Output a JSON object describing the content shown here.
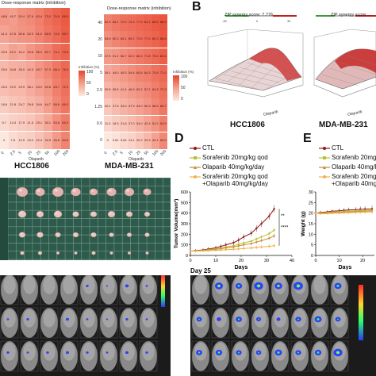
{
  "panel_letters": {
    "b": "B",
    "d": "D",
    "e": "E"
  },
  "heatmaps": {
    "left": {
      "title": "Dose-response matrix (inhibition)",
      "xlabel": "Olaparib",
      "cell_line": "HCC1806",
      "legend_title": "Inhibition (%)",
      "legend_ticks": [
        "100",
        "50",
        "0"
      ],
      "x_ticks": [
        "0",
        "2.5",
        "5",
        "10",
        "25",
        "50",
        "100",
        "200"
      ],
      "values": [
        [
          "48.8",
          "45.7",
          "53.4",
          "57.6",
          "63.4",
          "73.0",
          "79.5",
          "86.0"
        ],
        [
          "41.3",
          "47.5",
          "50.8",
          "52.9",
          "61.0",
          "68.9",
          "74.9",
          "83.7"
        ],
        [
          "33.5",
          "43.1",
          "40.2",
          "49.8",
          "56.2",
          "62.7",
          "74.1",
          "79.6"
        ],
        [
          "29.6",
          "34.8",
          "35.0",
          "40.3",
          "49.7",
          "57.3",
          "68.4",
          "76.9"
        ],
        [
          "25.3",
          "29.2",
          "29.9",
          "36.1",
          "43.2",
          "50.6",
          "63.7",
          "72.4"
        ],
        [
          "16.8",
          "21.8",
          "24.7",
          "29.8",
          "34.6",
          "44.7",
          "58.8",
          "69.2"
        ],
        [
          "9.7",
          "14.3",
          "17.9",
          "21.5",
          "29.1",
          "39.1",
          "53.8",
          "65.3"
        ],
        [
          "0",
          "7.8",
          "12.5",
          "15.2",
          "22.4",
          "32.5",
          "46.8",
          "60.6"
        ]
      ]
    },
    "right": {
      "title": "Dose-response matrix (inhibition)",
      "xlabel": "Olaparib",
      "cell_line": "MDA-MB-231",
      "legend_title": "Inhibition (%)",
      "legend_ticks": [
        "100",
        "50",
        "0"
      ],
      "y_ticks": [
        "40",
        "20",
        "10",
        "5",
        "2.5",
        "1.25",
        "0.6",
        "0"
      ],
      "x_ticks": [
        "0",
        "2.5",
        "5",
        "10",
        "25",
        "50",
        "100",
        "200"
      ],
      "values": [
        [
          "62.3",
          "68.1",
          "72.0",
          "74.3",
          "77.9",
          "81.2",
          "85.5",
          "88.9"
        ],
        [
          "54.8",
          "60.3",
          "65.1",
          "69.2",
          "72.5",
          "77.0",
          "80.3",
          "86.8"
        ],
        [
          "47.5",
          "51.2",
          "56.7",
          "62.0",
          "66.4",
          "71.8",
          "75.5",
          "82.6"
        ],
        [
          "39.1",
          "44.0",
          "49.3",
          "54.6",
          "60.5",
          "64.3",
          "70.8",
          "77.0"
        ],
        [
          "30.8",
          "36.5",
          "41.4",
          "46.9",
          "52.2",
          "57.1",
          "64.3",
          "72.3"
        ],
        [
          "20.1",
          "27.5",
          "33.0",
          "37.9",
          "44.0",
          "50.3",
          "58.5",
          "68.7"
        ],
        [
          "11.3",
          "18.3",
          "21.8",
          "27.0",
          "34.0",
          "42.4",
          "51.2",
          "63.9"
        ],
        [
          "0",
          "3.81",
          "9.64",
          "13.1",
          "20.2",
          "29.3",
          "43.1",
          "59.0"
        ]
      ]
    }
  },
  "surfaces": {
    "left": {
      "score_label": "ZIP synergy score: 7.776",
      "cell_line": "HCC1806",
      "axis_label": "Olaparib",
      "legend_ticks": [
        "-30",
        "0",
        "30"
      ]
    },
    "right": {
      "score_label": "ZIP synergy score: ...",
      "cell_line": "MDA-MB-231",
      "axis_label": "Olaparib"
    }
  },
  "chart_data": [
    {
      "type": "line",
      "panel": "D",
      "xlabel": "Days",
      "ylabel": "Tumor Volume(mm³)",
      "x_ticks": [
        "0",
        "10",
        "20",
        "30",
        "40"
      ],
      "y_ticks": [
        "0",
        "100",
        "200",
        "300",
        "400",
        "500",
        "600"
      ],
      "xlim": [
        0,
        40
      ],
      "ylim": [
        0,
        600
      ],
      "x": [
        0,
        2,
        5,
        7,
        10,
        12,
        14,
        17,
        19,
        21,
        24,
        26,
        28,
        31,
        33
      ],
      "series": [
        {
          "name": "CTL",
          "color": "#8b1a1a",
          "values": [
            40,
            45,
            52,
            60,
            72,
            85,
            100,
            120,
            145,
            175,
            210,
            255,
            300,
            370,
            440
          ]
        },
        {
          "name": "Sorafenib 20mg/kg qod",
          "color": "#b5c22e",
          "values": [
            40,
            43,
            48,
            54,
            62,
            70,
            80,
            92,
            105,
            118,
            135,
            155,
            175,
            205,
            240
          ]
        },
        {
          "name": "Olaparib 40mg/kg/day",
          "color": "#c98a3a",
          "values": [
            40,
            42,
            46,
            51,
            57,
            63,
            71,
            80,
            90,
            100,
            112,
            126,
            140,
            162,
            185
          ]
        },
        {
          "name": "Sorafenib 20mg/kg qod +Olaparib 40mg/kg/day",
          "color": "#f2b04a",
          "values": [
            40,
            41,
            43,
            45,
            48,
            51,
            54,
            58,
            62,
            66,
            70,
            75,
            80,
            86,
            92
          ]
        }
      ],
      "annotations": [
        "**",
        "****"
      ]
    },
    {
      "type": "line",
      "panel": "E",
      "xlabel": "Days",
      "ylabel": "Weight (g)",
      "x_ticks": [
        "0",
        "10",
        "20"
      ],
      "y_ticks": [
        "0",
        "5",
        "10",
        "15",
        "20",
        "25",
        "30"
      ],
      "xlim": [
        0,
        25
      ],
      "ylim": [
        0,
        30
      ],
      "x": [
        0,
        2,
        5,
        7,
        10,
        12,
        14,
        17,
        19,
        21,
        24
      ],
      "series": [
        {
          "name": "CTL",
          "color": "#8b1a1a",
          "values": [
            20.0,
            20.3,
            20.6,
            20.9,
            21.1,
            21.3,
            21.5,
            21.6,
            21.8,
            21.9,
            22.0
          ]
        },
        {
          "name": "Sorafenib 20mg/kg qod",
          "color": "#b5c22e",
          "values": [
            20.0,
            20.1,
            20.3,
            20.5,
            20.6,
            20.8,
            21.0,
            21.1,
            21.2,
            21.3,
            21.4
          ]
        },
        {
          "name": "Olaparib 40mg/kg/day",
          "color": "#c98a3a",
          "values": [
            20.0,
            19.9,
            20.1,
            20.2,
            20.3,
            20.5,
            20.6,
            20.7,
            20.8,
            20.9,
            21.0
          ]
        },
        {
          "name": "Sorafenib 20mg/kg qod +Olaparib 40mg/kg/day",
          "color": "#f2b04a",
          "values": [
            20.0,
            19.7,
            19.8,
            19.9,
            20.0,
            20.1,
            20.2,
            20.3,
            20.4,
            20.5,
            20.6
          ]
        }
      ]
    }
  ],
  "legend_d": {
    "ctl": "CTL",
    "sor": "Sorafenib 20mg/kg qod",
    "ola": "Olaparib 40mg/kg/day",
    "combo1": "Sorafenib 20mg/kg qod",
    "combo2": "+Olaparib 40mg/kg/day"
  },
  "legend_e": {
    "ctl": "CTL",
    "sor": "Sorafenib 20mg/kg qod",
    "ola": "Olaparib 40mg/kg/da",
    "combo1": "Sorafenib 20mg/kg q",
    "combo2": "+Olaparib 40mg/kg/"
  },
  "imaging": {
    "day_label": "Day 25"
  },
  "colors": {
    "heat_low": "#fde8df",
    "heat_high": "#e8432a",
    "ctl": "#8b1a1a",
    "sorafenib": "#b5c22e",
    "olaparib": "#c98a3a",
    "combo": "#f2b04a",
    "tumor_board": "#2d5a4a",
    "imaging_bg": "#1b1b1b"
  }
}
